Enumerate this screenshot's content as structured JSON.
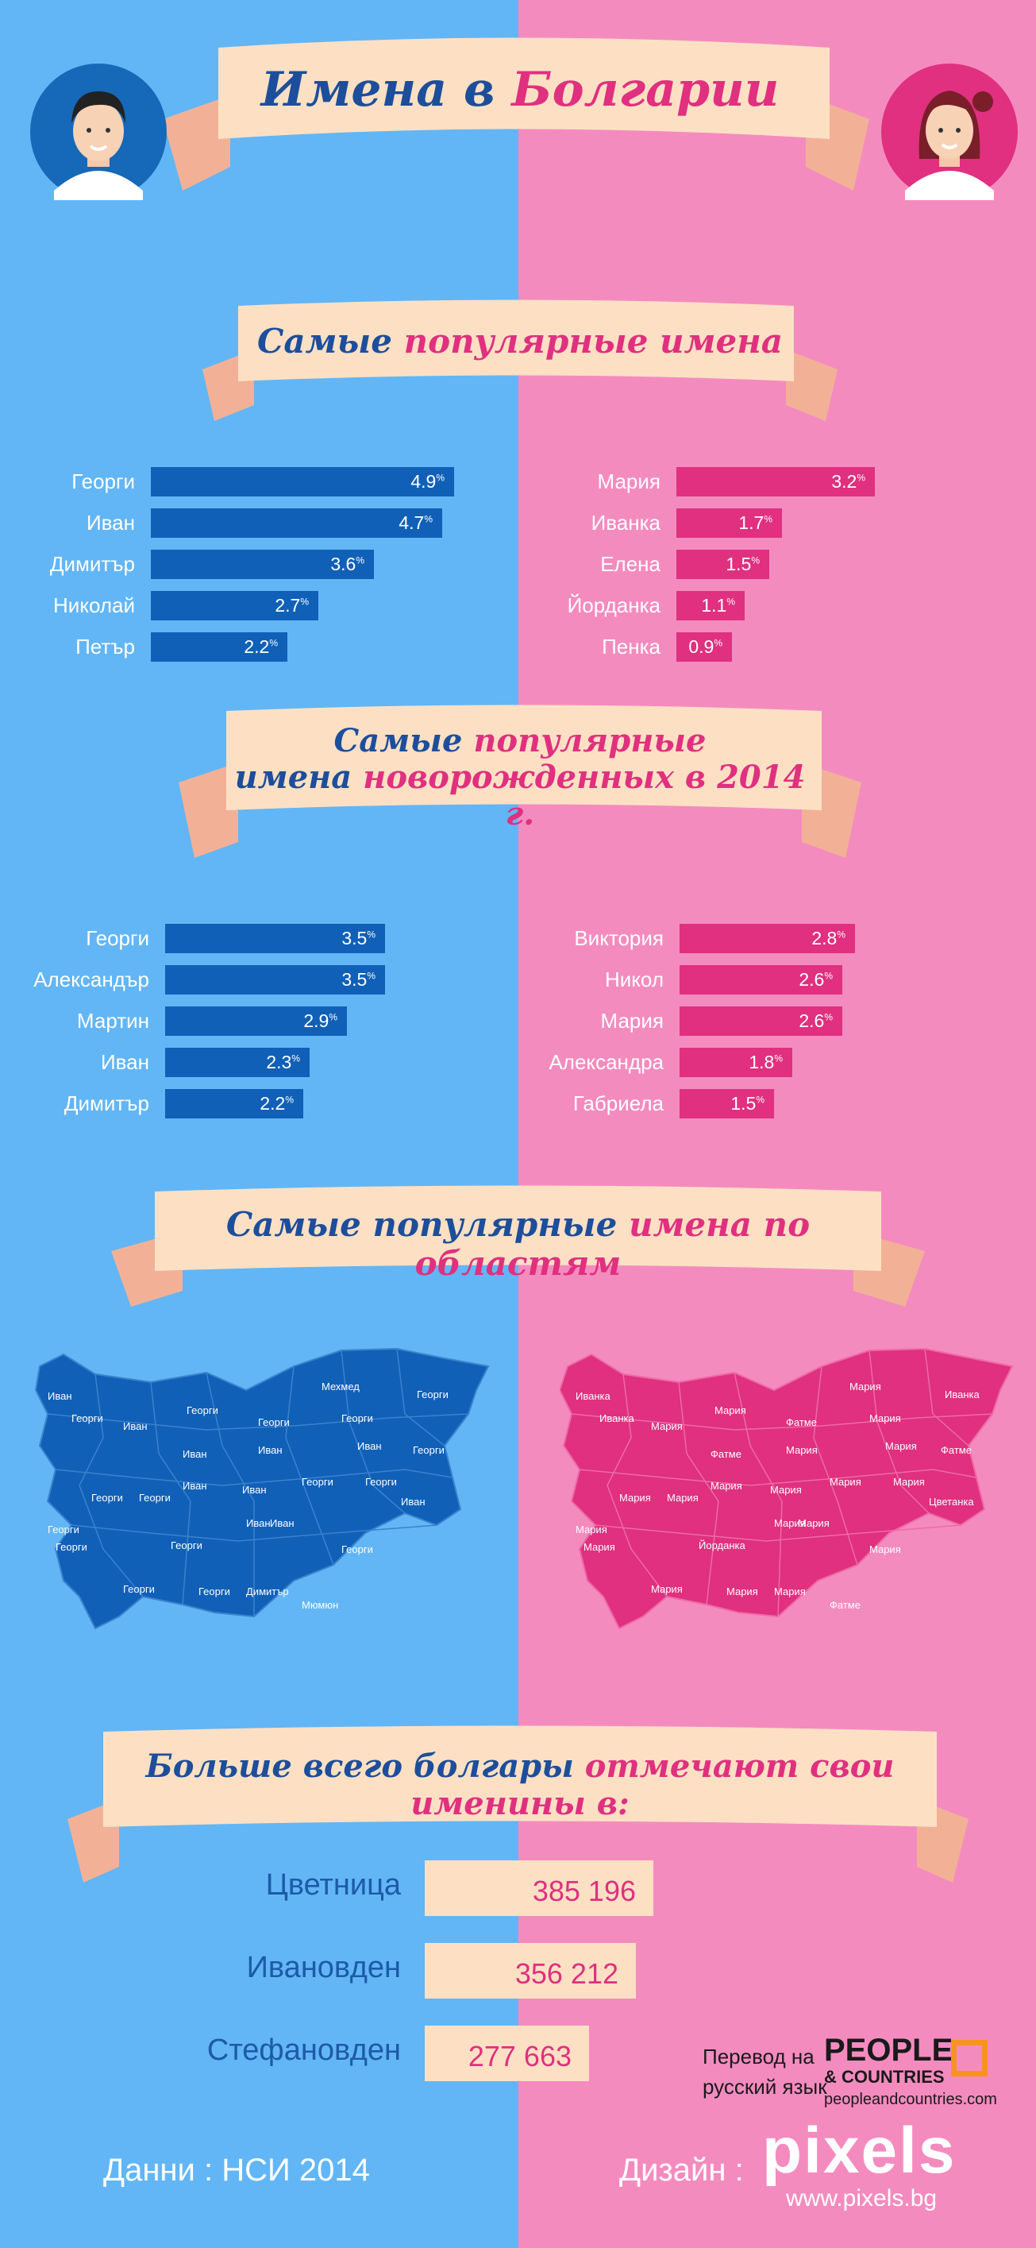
{
  "header": {
    "title_part1": "Имена в",
    "title_part2": "Болгарии"
  },
  "section1": {
    "title_part1": "Самые",
    "title_part2": "популярные имена"
  },
  "section2": {
    "line1_part1": "Самые",
    "line1_part2": "популярные",
    "line2_part1": "имена",
    "line2_part2": "новорожденных в 2014 г."
  },
  "section3": {
    "title_part1": "Самые популярные",
    "title_part2": "имена по областям"
  },
  "section4": {
    "title_part1": "Больше всего болгары",
    "title_part2": "отмечают свои именины в:"
  },
  "colors": {
    "left_bg": "#62b6f5",
    "right_bg": "#f48bbf",
    "male_bar": "#1060b8",
    "female_bar": "#e0307f",
    "ribbon": "#fde0c4"
  },
  "chart_data": [
    {
      "type": "bar",
      "title": "Самые популярные имена (мужские)",
      "categories": [
        "Георги",
        "Иван",
        "Димитър",
        "Николай",
        "Петър"
      ],
      "values": [
        4.9,
        4.7,
        3.6,
        2.7,
        2.2
      ],
      "unit": "%"
    },
    {
      "type": "bar",
      "title": "Самые популярные имена (женские)",
      "categories": [
        "Мария",
        "Иванка",
        "Елена",
        "Йорданка",
        "Пенка"
      ],
      "values": [
        3.2,
        1.7,
        1.5,
        1.1,
        0.9
      ],
      "unit": "%"
    },
    {
      "type": "bar",
      "title": "Самые популярные имена новорожденных в 2014 г. (мужские)",
      "categories": [
        "Георги",
        "Александър",
        "Мартин",
        "Иван",
        "Димитър"
      ],
      "values": [
        3.5,
        3.5,
        2.9,
        2.3,
        2.2
      ],
      "unit": "%"
    },
    {
      "type": "bar",
      "title": "Самые популярные имена новорожденных в 2014 г. (женские)",
      "categories": [
        "Виктория",
        "Никол",
        "Мария",
        "Александра",
        "Габриела"
      ],
      "values": [
        2.8,
        2.6,
        2.6,
        1.8,
        1.5
      ],
      "unit": "%"
    },
    {
      "type": "bar",
      "title": "Больше всего болгары отмечают свои именины в:",
      "categories": [
        "Цветница",
        "Ивановден",
        "Стефановден"
      ],
      "values": [
        385196,
        356212,
        277663
      ],
      "labels": [
        "385 196",
        "356 212",
        "277 663"
      ]
    }
  ],
  "maps": {
    "male_labels": [
      "Иван",
      "Георги",
      "Иван",
      "Георги",
      "Георги",
      "Мехмед",
      "Георги",
      "Георги",
      "Иван",
      "Георги",
      "Иван",
      "Иван",
      "Иван",
      "Иван",
      "Георги",
      "Георги",
      "Георги",
      "Георги",
      "Иван",
      "Иван",
      "Георги",
      "Георги",
      "Георги",
      "Иван",
      "Георги",
      "Георги",
      "Георги",
      "Димитър",
      "Мюмюн"
    ],
    "female_labels": [
      "Иванка",
      "Иванка",
      "Мария",
      "Мария",
      "Фатме",
      "Мария",
      "Иванка",
      "Мария",
      "Мария",
      "Фатме",
      "Фатме",
      "Мария",
      "Мария",
      "Мария",
      "Мария",
      "Мария",
      "Мария",
      "Мария",
      "Цветанка",
      "Мария",
      "Мария",
      "Мария",
      "Йорданка",
      "Мария",
      "Мария",
      "Мария",
      "Мария",
      "Мария",
      "Фатме"
    ]
  },
  "footer": {
    "source": "Данни :  НСИ 2014",
    "design_label": "Дизайн :",
    "translation_line1": "Перевод на",
    "translation_line2": "русский язык",
    "pc_logo_line1": "PEOPLE",
    "pc_logo_line2": "& COUNTRIES",
    "pc_url": "peopleandcountries.com",
    "pixels_logo": "pixels",
    "pixels_url": "www.pixels.bg"
  }
}
